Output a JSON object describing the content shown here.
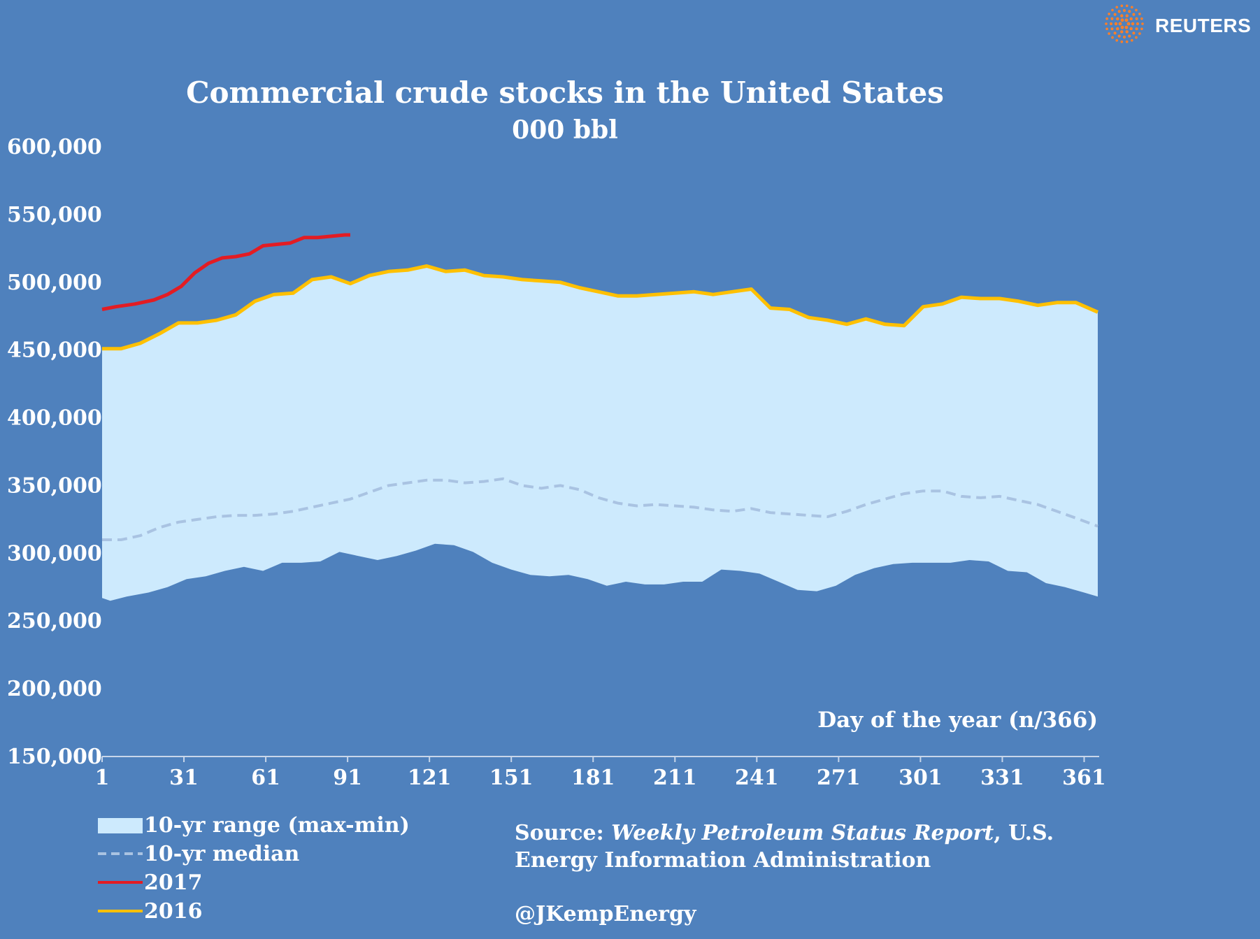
{
  "brand": {
    "name": "REUTERS",
    "accent_color": "#ff7f27"
  },
  "chart_data": {
    "type": "area",
    "title": "Commercial crude stocks in the United States",
    "subtitle": "000 bbl",
    "xlabel": "Day of the year (n/366)",
    "ylabel": "",
    "xlim": [
      1,
      366
    ],
    "ylim": [
      150000,
      600000
    ],
    "yticks": [
      150000,
      200000,
      250000,
      300000,
      350000,
      400000,
      450000,
      500000,
      550000,
      600000
    ],
    "ytick_labels": [
      "150,000",
      "200,000",
      "250,000",
      "300,000",
      "350,000",
      "400,000",
      "450,000",
      "500,000",
      "550,000",
      "600,000"
    ],
    "xticks": [
      1,
      31,
      61,
      91,
      121,
      151,
      181,
      211,
      241,
      271,
      301,
      331,
      361
    ],
    "xtick_labels": [
      "1",
      "31",
      "61",
      "91",
      "121",
      "151",
      "181",
      "211",
      "241",
      "271",
      "301",
      "331",
      "361"
    ],
    "grid": false,
    "legend_position": "bottom-left",
    "colors": {
      "background": "#4f81bd",
      "range_fill": "#cdeafd",
      "median_line": "#a9c3e2",
      "series_2017": "#e31c23",
      "series_2016": "#ffc000"
    },
    "range_days": [
      1,
      4,
      10,
      18,
      25,
      32,
      39,
      46,
      53,
      60,
      67,
      74,
      81,
      88,
      95,
      102,
      109,
      116,
      123,
      130,
      137,
      144,
      151,
      158,
      165,
      172,
      179,
      186,
      193,
      200,
      207,
      214,
      221,
      228,
      235,
      242,
      249,
      256,
      263,
      270,
      277,
      284,
      291,
      298,
      305,
      312,
      319,
      326,
      333,
      340,
      347,
      354,
      361,
      366
    ],
    "range_min": [
      267000,
      265000,
      268000,
      271000,
      275000,
      281000,
      283000,
      287000,
      290000,
      287000,
      293000,
      293000,
      294000,
      301000,
      298000,
      295000,
      298000,
      302000,
      307000,
      306000,
      301000,
      293000,
      288000,
      284000,
      283000,
      284000,
      281000,
      276000,
      279000,
      277000,
      277000,
      279000,
      279000,
      288000,
      287000,
      285000,
      279000,
      273000,
      272000,
      276000,
      284000,
      289000,
      292000,
      293000,
      293000,
      293000,
      295000,
      294000,
      287000,
      286000,
      278000,
      275000,
      271000,
      268000
    ],
    "series": [
      {
        "name": "10-yr range (max-min)",
        "style": "area",
        "days": [
          1,
          8,
          15,
          22,
          29,
          36,
          43,
          50,
          57,
          64,
          71,
          78,
          85,
          92,
          99,
          106,
          113,
          120,
          127,
          134,
          141,
          148,
          155,
          162,
          169,
          176,
          183,
          190,
          197,
          204,
          211,
          218,
          225,
          232,
          239,
          246,
          253,
          260,
          267,
          274,
          281,
          288,
          295,
          302,
          309,
          316,
          323,
          330,
          337,
          344,
          351,
          358,
          366
        ],
        "values": [
          451000,
          451000,
          455000,
          462000,
          470000,
          470000,
          472000,
          476000,
          486000,
          491000,
          492000,
          502000,
          504000,
          499000,
          505000,
          508000,
          509000,
          512000,
          508000,
          509000,
          505000,
          504000,
          502000,
          501000,
          500000,
          496000,
          493000,
          490000,
          490000,
          491000,
          492000,
          493000,
          491000,
          493000,
          495000,
          481000,
          480000,
          474000,
          472000,
          469000,
          473000,
          469000,
          468000,
          482000,
          484000,
          489000,
          488000,
          488000,
          486000,
          483000,
          485000,
          485000,
          478000
        ]
      },
      {
        "name": "10-yr median",
        "style": "dashed",
        "days": [
          1,
          8,
          15,
          22,
          29,
          36,
          43,
          50,
          57,
          64,
          71,
          78,
          85,
          92,
          99,
          106,
          113,
          120,
          127,
          134,
          141,
          148,
          155,
          162,
          169,
          176,
          183,
          190,
          197,
          204,
          211,
          218,
          225,
          232,
          239,
          246,
          253,
          260,
          267,
          274,
          281,
          288,
          295,
          302,
          309,
          316,
          323,
          330,
          337,
          344,
          351,
          358,
          366
        ],
        "values": [
          310000,
          310000,
          313000,
          319000,
          323000,
          325000,
          327000,
          328000,
          328000,
          329000,
          331000,
          334000,
          337000,
          340000,
          345000,
          350000,
          352000,
          354000,
          354000,
          352000,
          353000,
          355000,
          350000,
          348000,
          350000,
          347000,
          341000,
          337000,
          335000,
          336000,
          335000,
          334000,
          332000,
          331000,
          333000,
          330000,
          329000,
          328000,
          327000,
          331000,
          336000,
          340000,
          344000,
          346000,
          346000,
          342000,
          341000,
          342000,
          339000,
          336000,
          331000,
          326000,
          320000
        ]
      },
      {
        "name": "2017",
        "style": "solid",
        "days": [
          1,
          6,
          13,
          20,
          25,
          30,
          35,
          40,
          45,
          50,
          55,
          60,
          65,
          70,
          75,
          80,
          85,
          90,
          92
        ],
        "values": [
          480000,
          482000,
          484000,
          487000,
          491000,
          497000,
          507000,
          514000,
          518000,
          519000,
          521000,
          527000,
          528000,
          529000,
          533000,
          533000,
          534000,
          535000,
          535000
        ]
      },
      {
        "name": "2016",
        "style": "solid",
        "days": [
          1,
          8,
          15,
          22,
          29,
          36,
          43,
          50,
          57,
          64,
          71,
          78,
          85,
          92,
          99,
          106,
          113,
          120,
          127,
          134,
          141,
          148,
          155,
          162,
          169,
          176,
          183,
          190,
          197,
          204,
          211,
          218,
          225,
          232,
          239,
          246,
          253,
          260,
          267,
          274,
          281,
          288,
          295,
          302,
          309,
          316,
          323,
          330,
          337,
          344,
          351,
          358,
          366
        ],
        "values": [
          451000,
          451000,
          455000,
          462000,
          470000,
          470000,
          472000,
          476000,
          486000,
          491000,
          492000,
          502000,
          504000,
          499000,
          505000,
          508000,
          509000,
          512000,
          508000,
          509000,
          505000,
          504000,
          502000,
          501000,
          500000,
          496000,
          493000,
          490000,
          490000,
          491000,
          492000,
          493000,
          491000,
          493000,
          495000,
          481000,
          480000,
          474000,
          472000,
          469000,
          473000,
          469000,
          468000,
          482000,
          484000,
          489000,
          488000,
          488000,
          486000,
          483000,
          485000,
          485000,
          478000
        ]
      }
    ]
  },
  "legend": {
    "items": [
      {
        "label": "10-yr range (max-min)"
      },
      {
        "label": "10-yr median"
      },
      {
        "label": "2017"
      },
      {
        "label": "2016"
      }
    ]
  },
  "source": {
    "prefix": "Source: ",
    "publication": "Weekly Petroleum Status Report",
    "suffix": ", U.S. Energy Information Administration",
    "handle": "@JKempEnergy"
  }
}
